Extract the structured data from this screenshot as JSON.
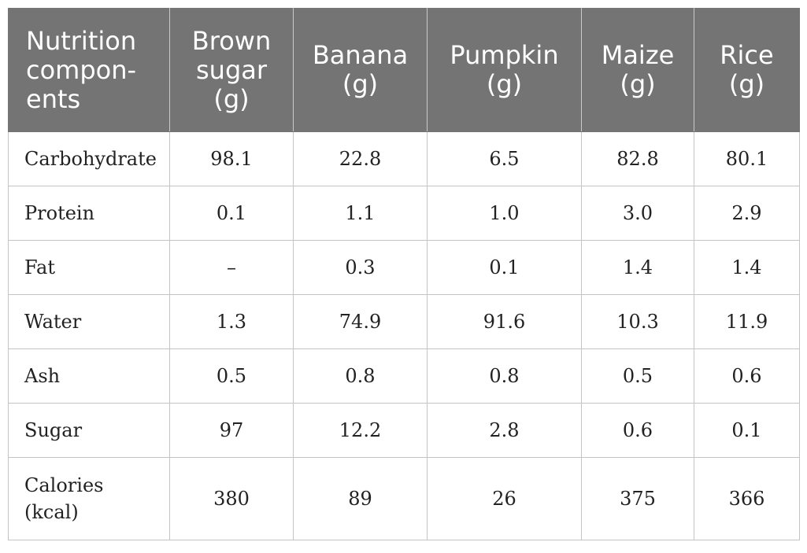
{
  "table": {
    "headers": [
      [
        "Nutrition",
        "compon-",
        "ents"
      ],
      [
        "Brown",
        "sugar",
        "(g)"
      ],
      [
        "Banana",
        "(g)"
      ],
      [
        "Pumpkin",
        "(g)"
      ],
      [
        "Maize",
        "(g)"
      ],
      [
        "Rice",
        "(g)"
      ]
    ],
    "rows": [
      {
        "label": [
          "Carbohydrate"
        ],
        "values": [
          "98.1",
          "22.8",
          "6.5",
          "82.8",
          "80.1"
        ]
      },
      {
        "label": [
          "Protein"
        ],
        "values": [
          "0.1",
          "1.1",
          "1.0",
          "3.0",
          "2.9"
        ]
      },
      {
        "label": [
          "Fat"
        ],
        "values": [
          "–",
          "0.3",
          "0.1",
          "1.4",
          "1.4"
        ]
      },
      {
        "label": [
          "Water"
        ],
        "values": [
          "1.3",
          "74.9",
          "91.6",
          "10.3",
          "11.9"
        ]
      },
      {
        "label": [
          "Ash"
        ],
        "values": [
          "0.5",
          "0.8",
          "0.8",
          "0.5",
          "0.6"
        ]
      },
      {
        "label": [
          "Sugar"
        ],
        "values": [
          "97",
          "12.2",
          "2.8",
          "0.6",
          "0.1"
        ]
      },
      {
        "label": [
          "Calories",
          "(kcal)"
        ],
        "values": [
          "380",
          "89",
          "26",
          "375",
          "366"
        ]
      }
    ]
  }
}
